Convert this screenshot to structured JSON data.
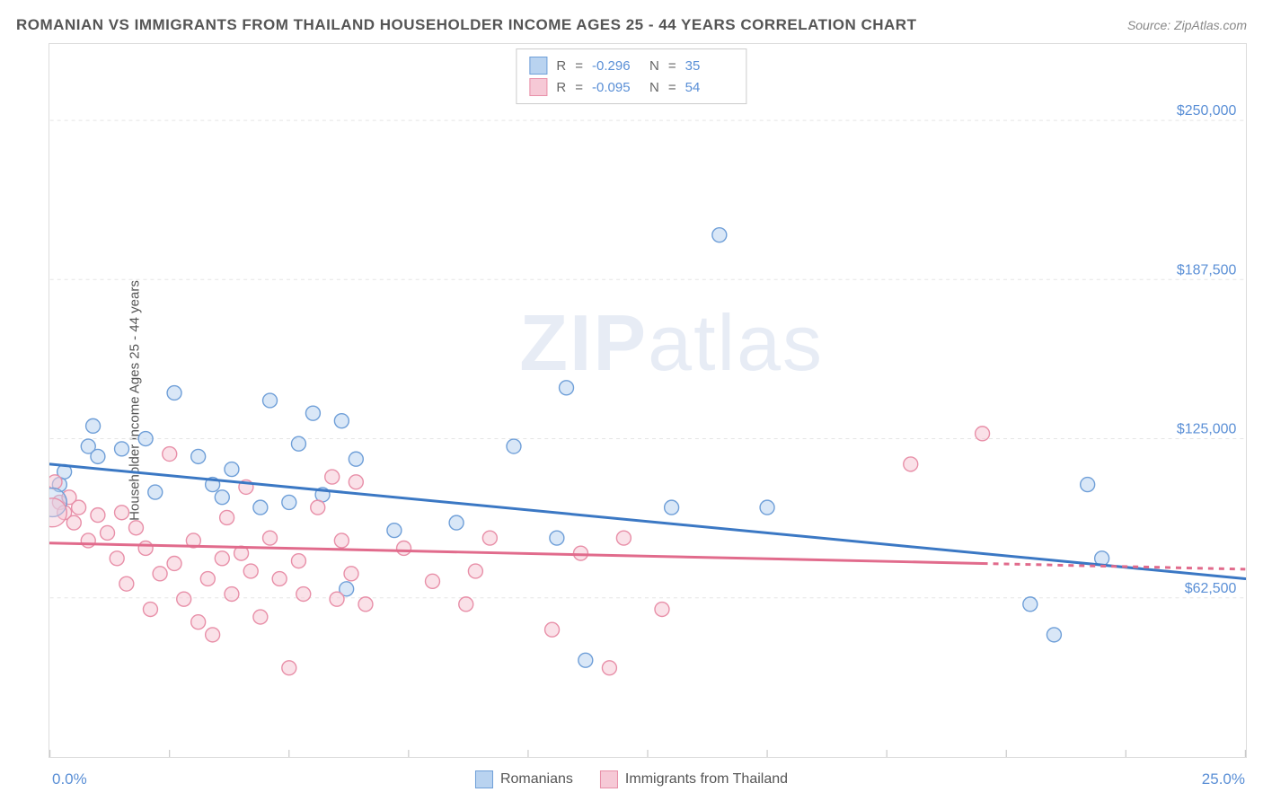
{
  "header": {
    "title": "ROMANIAN VS IMMIGRANTS FROM THAILAND HOUSEHOLDER INCOME AGES 25 - 44 YEARS CORRELATION CHART",
    "source": "Source: ZipAtlas.com"
  },
  "watermark": {
    "bold": "ZIP",
    "rest": "atlas"
  },
  "chart": {
    "type": "scatter",
    "ylabel": "Householder Income Ages 25 - 44 years",
    "xlim": [
      0,
      25
    ],
    "ylim": [
      0,
      280000
    ],
    "xtick_label_min": "0.0%",
    "xtick_label_max": "25.0%",
    "xticks": [
      0,
      2.5,
      5,
      7.5,
      10,
      12.5,
      15,
      17.5,
      20,
      22.5,
      25
    ],
    "yticks": [
      {
        "v": 62500,
        "label": "$62,500"
      },
      {
        "v": 125000,
        "label": "$125,000"
      },
      {
        "v": 187500,
        "label": "$187,500"
      },
      {
        "v": 250000,
        "label": "$250,000"
      }
    ],
    "grid_color": "#e5e5e5",
    "axis_tick_color": "#bfbfbf",
    "ylabel_color": "#5a8fd6",
    "background_color": "#ffffff",
    "series": [
      {
        "name": "Romanians",
        "legend_label": "Romanians",
        "fill": "#b9d3f0",
        "stroke": "#6f9fd8",
        "fill_opacity": 0.55,
        "marker_r": 8,
        "R": "-0.296",
        "N": "35",
        "trend": {
          "x1": 0,
          "y1": 115000,
          "x2": 25,
          "y2": 70000,
          "color": "#3b78c4",
          "width": 3
        },
        "points": [
          [
            0.2,
            107000
          ],
          [
            0.3,
            112000
          ],
          [
            0.8,
            122000
          ],
          [
            0.9,
            130000
          ],
          [
            1.0,
            118000
          ],
          [
            1.5,
            121000
          ],
          [
            2.0,
            125000
          ],
          [
            2.2,
            104000
          ],
          [
            2.6,
            143000
          ],
          [
            3.1,
            118000
          ],
          [
            3.4,
            107000
          ],
          [
            3.6,
            102000
          ],
          [
            3.8,
            113000
          ],
          [
            4.4,
            98000
          ],
          [
            4.6,
            140000
          ],
          [
            5.0,
            100000
          ],
          [
            5.2,
            123000
          ],
          [
            5.5,
            135000
          ],
          [
            5.7,
            103000
          ],
          [
            6.1,
            132000
          ],
          [
            6.2,
            66000
          ],
          [
            6.4,
            117000
          ],
          [
            7.2,
            89000
          ],
          [
            8.5,
            92000
          ],
          [
            9.7,
            122000
          ],
          [
            10.6,
            86000
          ],
          [
            10.8,
            145000
          ],
          [
            11.2,
            38000
          ],
          [
            13.0,
            98000
          ],
          [
            14.0,
            205000
          ],
          [
            15.0,
            98000
          ],
          [
            20.5,
            60000
          ],
          [
            21.0,
            48000
          ],
          [
            21.7,
            107000
          ],
          [
            22.0,
            78000
          ]
        ]
      },
      {
        "name": "Immigrants from Thailand",
        "legend_label": "Immigrants from Thailand",
        "fill": "#f6c9d6",
        "stroke": "#e88fa8",
        "fill_opacity": 0.55,
        "marker_r": 8,
        "R": "-0.095",
        "N": "54",
        "trend": {
          "x1": 0,
          "y1": 84000,
          "x2": 19.5,
          "y2": 76000,
          "color": "#e16b8c",
          "width": 3,
          "dash_from_x": 19.5,
          "dash_to_x": 25
        },
        "points": [
          [
            0.1,
            108000
          ],
          [
            0.2,
            100000
          ],
          [
            0.3,
            96000
          ],
          [
            0.4,
            102000
          ],
          [
            0.5,
            92000
          ],
          [
            0.6,
            98000
          ],
          [
            0.8,
            85000
          ],
          [
            1.0,
            95000
          ],
          [
            1.2,
            88000
          ],
          [
            1.4,
            78000
          ],
          [
            1.5,
            96000
          ],
          [
            1.6,
            68000
          ],
          [
            1.8,
            90000
          ],
          [
            2.0,
            82000
          ],
          [
            2.1,
            58000
          ],
          [
            2.3,
            72000
          ],
          [
            2.5,
            119000
          ],
          [
            2.6,
            76000
          ],
          [
            2.8,
            62000
          ],
          [
            3.0,
            85000
          ],
          [
            3.1,
            53000
          ],
          [
            3.3,
            70000
          ],
          [
            3.4,
            48000
          ],
          [
            3.6,
            78000
          ],
          [
            3.7,
            94000
          ],
          [
            3.8,
            64000
          ],
          [
            4.0,
            80000
          ],
          [
            4.2,
            73000
          ],
          [
            4.4,
            55000
          ],
          [
            4.6,
            86000
          ],
          [
            4.8,
            70000
          ],
          [
            5.0,
            35000
          ],
          [
            5.2,
            77000
          ],
          [
            5.3,
            64000
          ],
          [
            5.6,
            98000
          ],
          [
            5.9,
            110000
          ],
          [
            6.0,
            62000
          ],
          [
            6.1,
            85000
          ],
          [
            6.3,
            72000
          ],
          [
            6.6,
            60000
          ],
          [
            7.4,
            82000
          ],
          [
            8.0,
            69000
          ],
          [
            8.7,
            60000
          ],
          [
            8.9,
            73000
          ],
          [
            9.2,
            86000
          ],
          [
            10.5,
            50000
          ],
          [
            11.1,
            80000
          ],
          [
            11.7,
            35000
          ],
          [
            12.0,
            86000
          ],
          [
            12.8,
            58000
          ],
          [
            18.0,
            115000
          ],
          [
            19.5,
            127000
          ],
          [
            6.4,
            108000
          ],
          [
            4.1,
            106000
          ]
        ]
      }
    ]
  },
  "stats_box": {
    "R_label": "R",
    "N_label": "N",
    "eq": "="
  },
  "colors": {
    "title": "#555555",
    "source": "#888888",
    "stat_value": "#5a8fd6"
  }
}
